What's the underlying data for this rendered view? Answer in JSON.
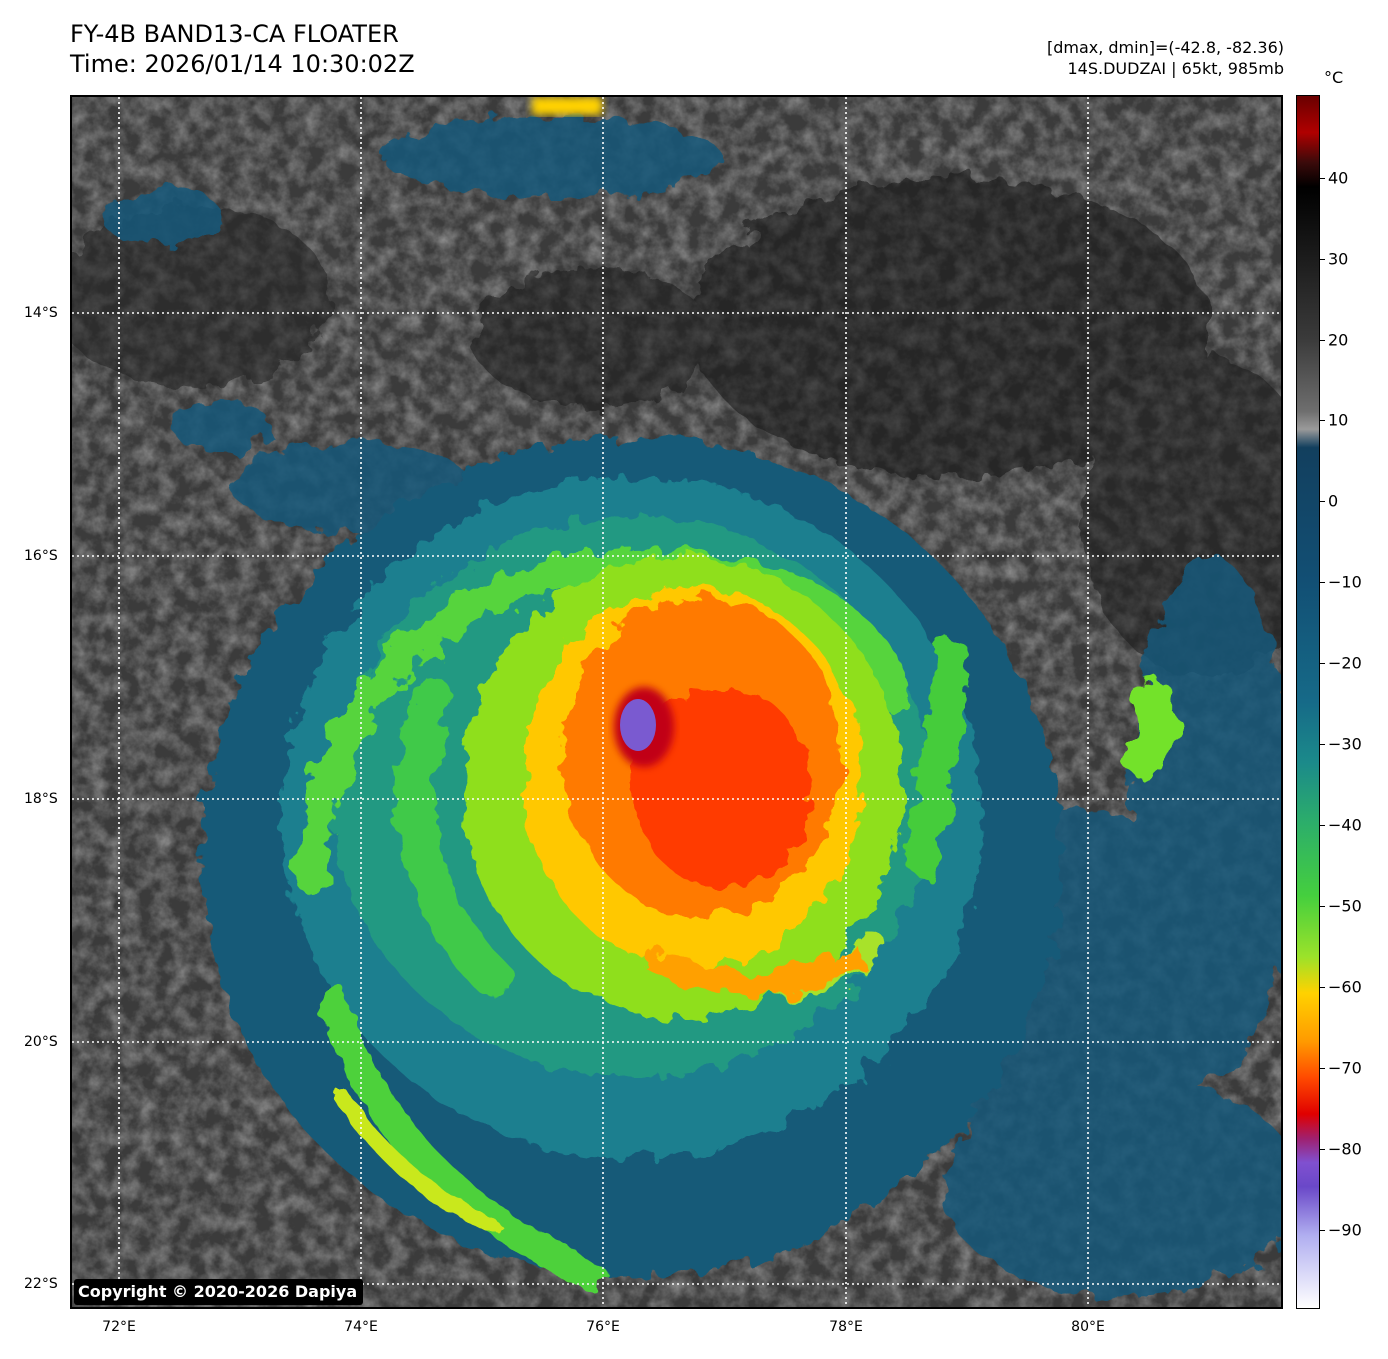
{
  "header": {
    "title": "FY-4B BAND13-CA FLOATER",
    "time": "Time: 2026/01/14 10:30:02Z",
    "range": "[dmax, dmin]=(-42.8, -82.36)",
    "storm": "14S.DUDZAI | 65kt, 985mb"
  },
  "map": {
    "description_colors": {
      "warm_surface": "#2e2e2e",
      "cold_cloud_top": "#ff2a00",
      "eye_wall": "#6a3fbf"
    },
    "lat_labels": [
      "14°S",
      "16°S",
      "18°S",
      "20°S",
      "22°S"
    ],
    "lon_labels": [
      "72°E",
      "74°E",
      "76°E",
      "78°E",
      "80°E"
    ],
    "copyright": "Copyright © 2020-2026 Dapiya"
  },
  "colorbar": {
    "unit": "°C",
    "ticks": [
      "40",
      "30",
      "20",
      "10",
      "0",
      "−10",
      "−20",
      "−30",
      "−40",
      "−50",
      "−60",
      "−70",
      "−80",
      "−90"
    ]
  }
}
